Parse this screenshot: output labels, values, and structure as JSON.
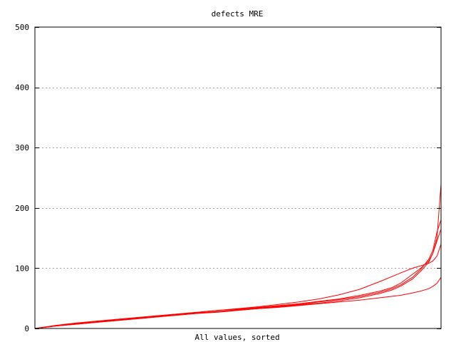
{
  "chart_data": {
    "type": "line",
    "title": "defects MRE",
    "xlabel": "All values, sorted",
    "ylabel": "",
    "ylim": [
      0,
      500
    ],
    "yticks": [
      0,
      100,
      200,
      300,
      400,
      500
    ],
    "xlim": [
      0,
      1
    ],
    "grid": true,
    "line_color": "#ff0000",
    "series": [
      {
        "x": [
          0,
          0.05,
          0.1,
          0.15,
          0.2,
          0.25,
          0.3,
          0.35,
          0.4,
          0.45,
          0.5,
          0.55,
          0.6,
          0.65,
          0.7,
          0.75,
          0.8,
          0.85,
          0.9,
          0.93,
          0.95,
          0.97,
          0.98,
          0.99,
          1.0
        ],
        "values": [
          0,
          4,
          8,
          11,
          15,
          18,
          21,
          24,
          27,
          30,
          33,
          36,
          40,
          44,
          49,
          56,
          65,
          78,
          92,
          100,
          104,
          108,
          112,
          120,
          140
        ]
      },
      {
        "x": [
          0,
          0.05,
          0.1,
          0.15,
          0.2,
          0.25,
          0.3,
          0.35,
          0.4,
          0.45,
          0.5,
          0.55,
          0.6,
          0.65,
          0.7,
          0.75,
          0.8,
          0.85,
          0.88,
          0.9,
          0.93,
          0.95,
          0.97,
          0.98,
          0.99,
          1.0
        ],
        "values": [
          0,
          5,
          9,
          12,
          15,
          18,
          21,
          24,
          27,
          30,
          32,
          35,
          38,
          41,
          45,
          49,
          55,
          62,
          68,
          75,
          90,
          100,
          112,
          125,
          150,
          240
        ]
      },
      {
        "x": [
          0,
          0.05,
          0.1,
          0.15,
          0.2,
          0.25,
          0.3,
          0.35,
          0.4,
          0.45,
          0.5,
          0.55,
          0.6,
          0.65,
          0.7,
          0.75,
          0.8,
          0.85,
          0.88,
          0.9,
          0.93,
          0.95,
          0.97,
          0.98,
          0.99,
          1.0
        ],
        "values": [
          0,
          4,
          8,
          11,
          14,
          17,
          20,
          23,
          26,
          28,
          31,
          34,
          37,
          40,
          44,
          48,
          53,
          60,
          66,
          72,
          85,
          98,
          115,
          130,
          160,
          180
        ]
      },
      {
        "x": [
          0,
          0.05,
          0.1,
          0.15,
          0.2,
          0.25,
          0.3,
          0.35,
          0.4,
          0.45,
          0.5,
          0.55,
          0.6,
          0.65,
          0.7,
          0.75,
          0.8,
          0.85,
          0.88,
          0.9,
          0.93,
          0.95,
          0.97,
          0.98,
          0.99,
          1.0
        ],
        "values": [
          0,
          4,
          7,
          10,
          13,
          16,
          19,
          22,
          25,
          28,
          30,
          33,
          36,
          39,
          42,
          46,
          51,
          58,
          64,
          70,
          82,
          95,
          110,
          125,
          145,
          165
        ]
      },
      {
        "x": [
          0,
          0.05,
          0.1,
          0.15,
          0.2,
          0.25,
          0.3,
          0.35,
          0.4,
          0.45,
          0.5,
          0.55,
          0.6,
          0.65,
          0.7,
          0.75,
          0.8,
          0.85,
          0.9,
          0.93,
          0.95,
          0.97,
          0.98,
          0.99,
          1.0
        ],
        "values": [
          0,
          4,
          7,
          10,
          13,
          16,
          19,
          22,
          25,
          27,
          30,
          33,
          35,
          38,
          41,
          44,
          47,
          51,
          55,
          59,
          62,
          66,
          70,
          75,
          85
        ]
      }
    ]
  }
}
